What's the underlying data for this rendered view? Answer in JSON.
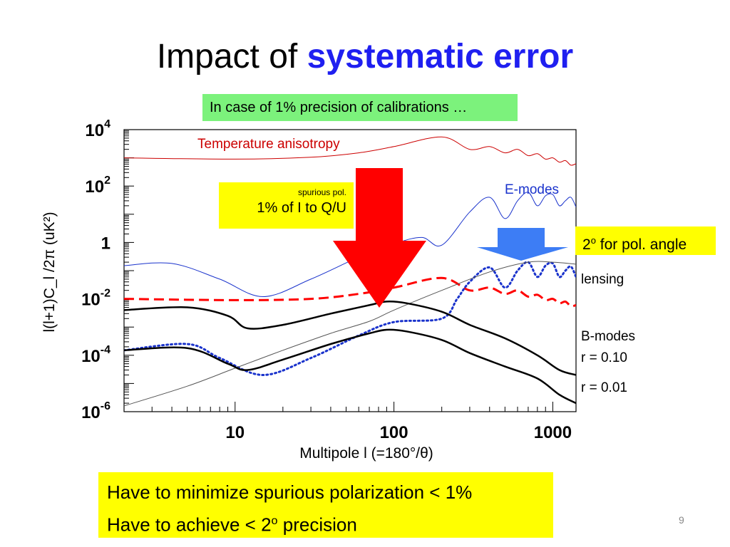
{
  "slide": {
    "title_prefix": "Impact of ",
    "title_highlight": "systematic error",
    "note": "In case of 1% precision of calibrations …",
    "spurious_small": "spurious pol.",
    "spurious_big": "1% of I to Q/U",
    "pol_angle_base": "2",
    "pol_angle_sup": "o",
    "pol_angle_rest": " for pol. angle",
    "bottom_line1": "Have to minimize spurious polarization < 1%",
    "bottom_line2_pre": "Have to achieve < 2",
    "bottom_line2_sup": "o",
    "bottom_line2_post": " precision",
    "page_number": "9",
    "colors": {
      "temperature": "#cc0000",
      "emodes": "#1a33cc",
      "highlight": "#1f1ff0",
      "arrow_red": "#ff0000",
      "arrow_blue": "#3d7df5",
      "note_bg": "#7cf27c",
      "callout_bg": "#ffff00"
    }
  },
  "chart_data": {
    "type": "line",
    "xscale": "log",
    "yscale": "log",
    "xlim": [
      2,
      1400
    ],
    "ylim": [
      1e-06,
      10000.0
    ],
    "xlabel": "Multipole l (=180°/θ)",
    "ylabel": "l(l+1)C_l /2π (uK²)",
    "xticks": [
      {
        "value": 10,
        "label": "10"
      },
      {
        "value": 100,
        "label": "100"
      },
      {
        "value": 1000,
        "label": "1000"
      }
    ],
    "yticks": [
      {
        "value": 10000,
        "base": "10",
        "exp": "4"
      },
      {
        "value": 100,
        "base": "10",
        "exp": "2"
      },
      {
        "value": 1,
        "base": "1",
        "exp": ""
      },
      {
        "value": 0.01,
        "base": "10",
        "exp": "-2"
      },
      {
        "value": 0.0001,
        "base": "10",
        "exp": "-4"
      },
      {
        "value": 1e-06,
        "base": "10",
        "exp": "-6"
      }
    ],
    "series": [
      {
        "name": "Temperature anisotropy",
        "color": "#cc0000",
        "style": "solid",
        "width": 1,
        "points": [
          [
            2,
            1000
          ],
          [
            10,
            900
          ],
          [
            30,
            1050
          ],
          [
            60,
            1500
          ],
          [
            100,
            2500
          ],
          [
            200,
            5500
          ],
          [
            300,
            2000
          ],
          [
            400,
            2500
          ],
          [
            500,
            1500
          ],
          [
            600,
            2000
          ],
          [
            700,
            1200
          ],
          [
            800,
            1400
          ],
          [
            900,
            900
          ],
          [
            1000,
            1000
          ],
          [
            1100,
            700
          ],
          [
            1200,
            800
          ],
          [
            1300,
            550
          ],
          [
            1400,
            620
          ]
        ]
      },
      {
        "name": "E-modes",
        "color": "#1a33cc",
        "style": "solid",
        "width": 1,
        "points": [
          [
            2,
            0.15
          ],
          [
            4,
            0.18
          ],
          [
            8,
            0.05
          ],
          [
            15,
            0.012
          ],
          [
            30,
            0.05
          ],
          [
            60,
            0.3
          ],
          [
            100,
            0.9
          ],
          [
            150,
            1.5
          ],
          [
            200,
            0.8
          ],
          [
            300,
            12
          ],
          [
            400,
            40
          ],
          [
            500,
            7
          ],
          [
            600,
            30
          ],
          [
            700,
            60
          ],
          [
            800,
            20
          ],
          [
            900,
            45
          ],
          [
            1000,
            50
          ],
          [
            1100,
            20
          ],
          [
            1200,
            30
          ],
          [
            1300,
            40
          ],
          [
            1400,
            18
          ]
        ]
      },
      {
        "name": "spurious pol. (1% of I to Q/U)",
        "color": "#ff0000",
        "style": "dashed",
        "width": 3,
        "points": [
          [
            2,
            0.01
          ],
          [
            10,
            0.009
          ],
          [
            30,
            0.01
          ],
          [
            60,
            0.015
          ],
          [
            100,
            0.025
          ],
          [
            200,
            0.055
          ],
          [
            300,
            0.02
          ],
          [
            400,
            0.025
          ],
          [
            500,
            0.015
          ],
          [
            600,
            0.02
          ],
          [
            700,
            0.012
          ],
          [
            800,
            0.014
          ],
          [
            900,
            0.009
          ],
          [
            1000,
            0.01
          ],
          [
            1100,
            0.007
          ],
          [
            1200,
            0.008
          ],
          [
            1300,
            0.0055
          ],
          [
            1400,
            0.006
          ]
        ]
      },
      {
        "name": "2° for pol. angle",
        "color": "#1a33cc",
        "style": "dotted",
        "width": 3,
        "points": [
          [
            2,
            0.00015
          ],
          [
            5,
            0.00025
          ],
          [
            8,
            8e-05
          ],
          [
            15,
            2e-05
          ],
          [
            30,
            8e-05
          ],
          [
            60,
            0.0005
          ],
          [
            100,
            0.0015
          ],
          [
            200,
            0.002
          ],
          [
            250,
            0.01
          ],
          [
            300,
            0.04
          ],
          [
            400,
            0.13
          ],
          [
            500,
            0.025
          ],
          [
            600,
            0.1
          ],
          [
            700,
            0.2
          ],
          [
            800,
            0.06
          ],
          [
            900,
            0.15
          ],
          [
            1000,
            0.18
          ],
          [
            1100,
            0.06
          ],
          [
            1200,
            0.1
          ],
          [
            1300,
            0.14
          ],
          [
            1400,
            0.06
          ]
        ]
      },
      {
        "name": "lensing",
        "color": "#555555",
        "style": "solid",
        "width": 1,
        "points": [
          [
            2,
            1.6e-06
          ],
          [
            5,
            8e-06
          ],
          [
            10,
            3.5e-05
          ],
          [
            20,
            0.00015
          ],
          [
            40,
            0.0006
          ],
          [
            70,
            0.0016
          ],
          [
            100,
            0.004
          ],
          [
            200,
            0.02
          ],
          [
            400,
            0.09
          ],
          [
            700,
            0.2
          ],
          [
            1000,
            0.2
          ],
          [
            1400,
            0.17
          ]
        ]
      },
      {
        "name": "r = 0.10",
        "color": "#000000",
        "style": "solid",
        "width": 2.5,
        "points": [
          [
            2,
            0.004
          ],
          [
            5,
            0.005
          ],
          [
            9,
            0.0025
          ],
          [
            12,
            0.0009
          ],
          [
            20,
            0.0012
          ],
          [
            40,
            0.003
          ],
          [
            70,
            0.006
          ],
          [
            90,
            0.008
          ],
          [
            120,
            0.007
          ],
          [
            200,
            0.0035
          ],
          [
            300,
            0.0012
          ],
          [
            500,
            0.0004
          ],
          [
            800,
            0.0001
          ],
          [
            1100,
            3e-05
          ],
          [
            1400,
            2e-05
          ]
        ]
      },
      {
        "name": "r = 0.01",
        "color": "#000000",
        "style": "solid",
        "width": 2.5,
        "points": [
          [
            2,
            0.00015
          ],
          [
            5,
            0.00018
          ],
          [
            9,
            5e-05
          ],
          [
            12,
            3e-05
          ],
          [
            20,
            7e-05
          ],
          [
            40,
            0.00025
          ],
          [
            70,
            0.0006
          ],
          [
            90,
            0.0008
          ],
          [
            120,
            0.0007
          ],
          [
            200,
            0.00035
          ],
          [
            300,
            0.00012
          ],
          [
            500,
            4e-05
          ],
          [
            800,
            1.5e-05
          ],
          [
            1100,
            4e-06
          ],
          [
            1400,
            2e-06
          ]
        ]
      }
    ],
    "annotations": {
      "temperature": "Temperature anisotropy",
      "emodes": "E-modes",
      "lensing": "lensing",
      "bmodes": "B-modes",
      "r010": "r = 0.10",
      "r001": "r = 0.01"
    }
  }
}
